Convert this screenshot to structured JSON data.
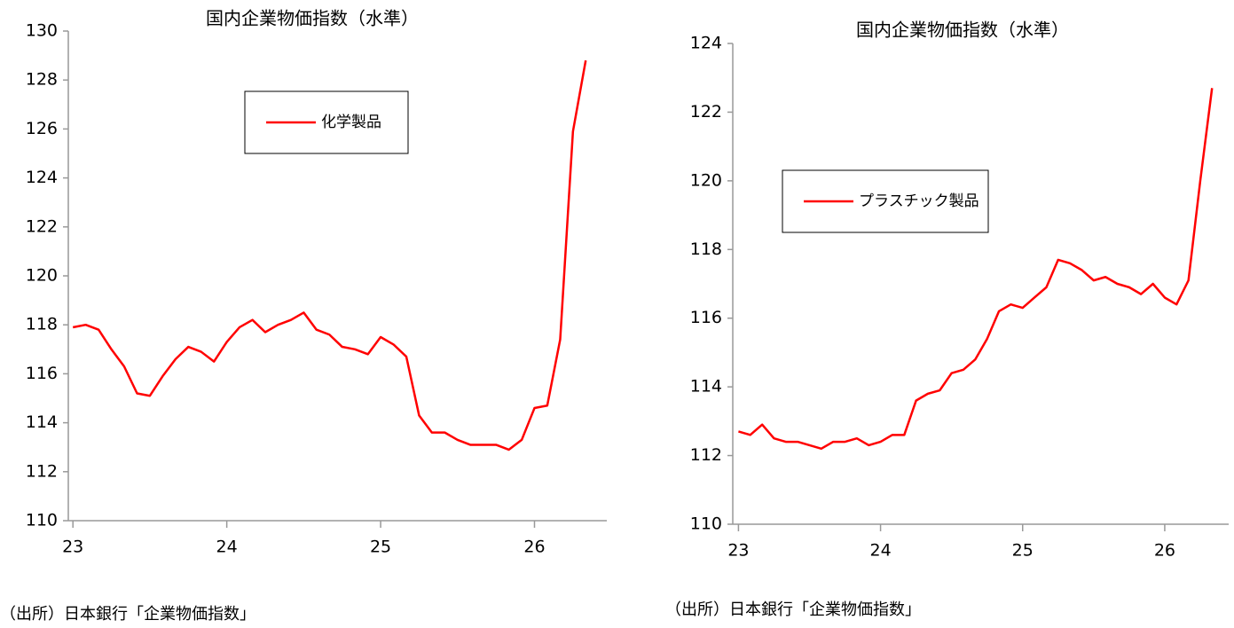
{
  "chart_data": [
    {
      "type": "line",
      "title": "国内企業物価指数（水準）",
      "x": [
        23,
        23.083,
        23.167,
        23.25,
        23.333,
        23.417,
        23.5,
        23.583,
        23.667,
        23.75,
        23.833,
        23.917,
        24,
        24.083,
        24.167,
        24.25,
        24.333,
        24.417,
        24.5,
        24.583,
        24.667,
        24.75,
        24.833,
        24.917,
        25,
        25.083,
        25.167,
        25.25,
        25.333,
        25.417,
        25.5,
        25.583,
        25.667,
        25.75,
        25.833,
        25.917,
        26,
        26.083,
        26.167,
        26.25,
        26.333
      ],
      "series": [
        {
          "name": "化学製品",
          "color": "#ff0000",
          "values": [
            117.9,
            118.0,
            117.8,
            117.0,
            116.3,
            115.2,
            115.1,
            115.9,
            116.6,
            117.1,
            116.9,
            116.5,
            117.3,
            117.9,
            118.2,
            117.7,
            118.0,
            118.2,
            118.5,
            117.8,
            117.6,
            117.1,
            117.0,
            116.8,
            117.5,
            117.2,
            116.7,
            114.3,
            113.6,
            113.6,
            113.3,
            113.1,
            113.1,
            113.1,
            112.9,
            113.3,
            114.6,
            114.7,
            117.4,
            125.9,
            128.8
          ]
        }
      ],
      "xlim": [
        22.97,
        26.47
      ],
      "xticks": [
        23,
        24,
        25,
        26
      ],
      "ylim": [
        110,
        130
      ],
      "yticks": [
        110,
        112,
        114,
        116,
        118,
        120,
        122,
        124,
        126,
        128,
        130
      ],
      "source": "（出所）日本銀行「企業物価指数」"
    },
    {
      "type": "line",
      "title": "国内企業物価指数（水準）",
      "x": [
        23,
        23.083,
        23.167,
        23.25,
        23.333,
        23.417,
        23.5,
        23.583,
        23.667,
        23.75,
        23.833,
        23.917,
        24,
        24.083,
        24.167,
        24.25,
        24.333,
        24.417,
        24.5,
        24.583,
        24.667,
        24.75,
        24.833,
        24.917,
        25,
        25.083,
        25.167,
        25.25,
        25.333,
        25.417,
        25.5,
        25.583,
        25.667,
        25.75,
        25.833,
        25.917,
        26,
        26.083,
        26.167,
        26.25,
        26.333
      ],
      "series": [
        {
          "name": "プラスチック製品",
          "color": "#ff0000",
          "values": [
            112.7,
            112.6,
            112.9,
            112.5,
            112.4,
            112.4,
            112.3,
            112.2,
            112.4,
            112.4,
            112.5,
            112.3,
            112.4,
            112.6,
            112.6,
            113.6,
            113.8,
            113.9,
            114.4,
            114.5,
            114.8,
            115.4,
            116.2,
            116.4,
            116.3,
            116.6,
            116.9,
            117.7,
            117.6,
            117.4,
            117.1,
            117.2,
            117.0,
            116.9,
            116.7,
            117.0,
            116.6,
            116.4,
            117.1,
            120.0,
            122.7
          ]
        }
      ],
      "xlim": [
        22.96,
        26.45
      ],
      "xticks": [
        23,
        24,
        25,
        26
      ],
      "ylim": [
        110,
        124
      ],
      "yticks": [
        110,
        112,
        114,
        116,
        118,
        120,
        122,
        124
      ],
      "source": "（出所）日本銀行「企業物価指数」"
    }
  ]
}
